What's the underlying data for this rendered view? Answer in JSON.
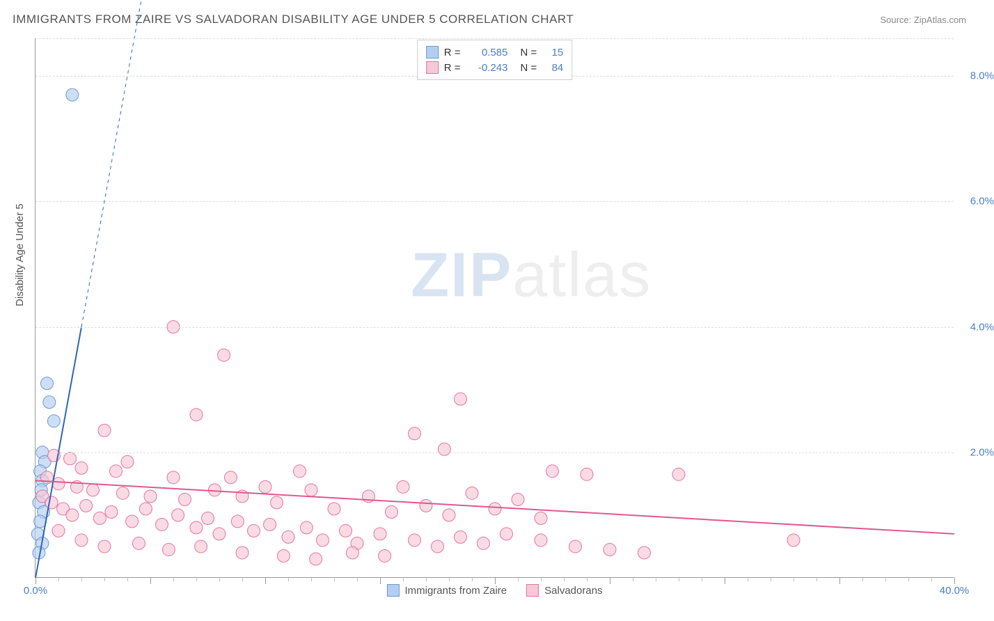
{
  "header": {
    "title": "IMMIGRANTS FROM ZAIRE VS SALVADORAN DISABILITY AGE UNDER 5 CORRELATION CHART",
    "source": "Source: ZipAtlas.com"
  },
  "watermark": {
    "part1": "ZIP",
    "part2": "atlas"
  },
  "chart": {
    "type": "scatter",
    "x_axis": {
      "min": 0.0,
      "max": 40.0,
      "label_min": "0.0%",
      "label_max": "40.0%",
      "major_step": 5.0,
      "minor_step": 1.0
    },
    "y_axis": {
      "min": 0.0,
      "max": 8.6,
      "ticks": [
        2.0,
        4.0,
        6.0,
        8.0
      ],
      "tick_labels": [
        "2.0%",
        "4.0%",
        "6.0%",
        "8.0%"
      ],
      "label": "Disability Age Under 5"
    },
    "grid_color": "#dddddd",
    "axis_color": "#999999",
    "background_color": "#ffffff",
    "tick_label_color": "#4a7fc4",
    "series": [
      {
        "name": "Immigrants from Zaire",
        "color_fill": "#b3cef0",
        "color_stroke": "#6a9ad4",
        "marker_radius": 9,
        "R": "0.585",
        "N": "15",
        "trend": {
          "x1": 0.0,
          "y1": 0.0,
          "x2": 2.0,
          "y2": 4.0,
          "dash_x2": 5.0,
          "dash_y2": 10.0,
          "color": "#2f66b8",
          "width": 2
        },
        "points": [
          {
            "x": 1.6,
            "y": 7.7
          },
          {
            "x": 0.5,
            "y": 3.1
          },
          {
            "x": 0.6,
            "y": 2.8
          },
          {
            "x": 0.8,
            "y": 2.5
          },
          {
            "x": 0.3,
            "y": 2.0
          },
          {
            "x": 0.4,
            "y": 1.85
          },
          {
            "x": 0.2,
            "y": 1.7
          },
          {
            "x": 0.3,
            "y": 1.55
          },
          {
            "x": 0.25,
            "y": 1.4
          },
          {
            "x": 0.15,
            "y": 1.2
          },
          {
            "x": 0.35,
            "y": 1.05
          },
          {
            "x": 0.2,
            "y": 0.9
          },
          {
            "x": 0.1,
            "y": 0.7
          },
          {
            "x": 0.3,
            "y": 0.55
          },
          {
            "x": 0.15,
            "y": 0.4
          }
        ]
      },
      {
        "name": "Salvadorans",
        "color_fill": "#f7c8d6",
        "color_stroke": "#e573a0",
        "marker_radius": 9,
        "R": "-0.243",
        "N": "84",
        "trend": {
          "x1": 0.0,
          "y1": 1.55,
          "x2": 40.0,
          "y2": 0.7,
          "color": "#e05790",
          "width": 2
        },
        "points": [
          {
            "x": 6.0,
            "y": 4.0
          },
          {
            "x": 8.2,
            "y": 3.55
          },
          {
            "x": 18.5,
            "y": 2.85
          },
          {
            "x": 7.0,
            "y": 2.6
          },
          {
            "x": 3.0,
            "y": 2.35
          },
          {
            "x": 16.5,
            "y": 2.3
          },
          {
            "x": 0.8,
            "y": 1.95
          },
          {
            "x": 1.5,
            "y": 1.9
          },
          {
            "x": 17.8,
            "y": 2.05
          },
          {
            "x": 22.5,
            "y": 1.7
          },
          {
            "x": 24.0,
            "y": 1.65
          },
          {
            "x": 28.0,
            "y": 1.65
          },
          {
            "x": 4.0,
            "y": 1.85
          },
          {
            "x": 2.0,
            "y": 1.75
          },
          {
            "x": 3.5,
            "y": 1.7
          },
          {
            "x": 6.0,
            "y": 1.6
          },
          {
            "x": 8.5,
            "y": 1.6
          },
          {
            "x": 10.0,
            "y": 1.45
          },
          {
            "x": 11.5,
            "y": 1.7
          },
          {
            "x": 0.5,
            "y": 1.6
          },
          {
            "x": 1.0,
            "y": 1.5
          },
          {
            "x": 1.8,
            "y": 1.45
          },
          {
            "x": 2.5,
            "y": 1.4
          },
          {
            "x": 3.8,
            "y": 1.35
          },
          {
            "x": 5.0,
            "y": 1.3
          },
          {
            "x": 6.5,
            "y": 1.25
          },
          {
            "x": 7.8,
            "y": 1.4
          },
          {
            "x": 9.0,
            "y": 1.3
          },
          {
            "x": 10.5,
            "y": 1.2
          },
          {
            "x": 12.0,
            "y": 1.4
          },
          {
            "x": 13.0,
            "y": 1.1
          },
          {
            "x": 14.5,
            "y": 1.3
          },
          {
            "x": 15.5,
            "y": 1.05
          },
          {
            "x": 16.0,
            "y": 1.45
          },
          {
            "x": 17.0,
            "y": 1.15
          },
          {
            "x": 18.0,
            "y": 1.0
          },
          {
            "x": 19.0,
            "y": 1.35
          },
          {
            "x": 20.0,
            "y": 1.1
          },
          {
            "x": 21.0,
            "y": 1.25
          },
          {
            "x": 22.0,
            "y": 0.95
          },
          {
            "x": 0.3,
            "y": 1.3
          },
          {
            "x": 0.7,
            "y": 1.2
          },
          {
            "x": 1.2,
            "y": 1.1
          },
          {
            "x": 1.6,
            "y": 1.0
          },
          {
            "x": 2.2,
            "y": 1.15
          },
          {
            "x": 2.8,
            "y": 0.95
          },
          {
            "x": 3.3,
            "y": 1.05
          },
          {
            "x": 4.2,
            "y": 0.9
          },
          {
            "x": 4.8,
            "y": 1.1
          },
          {
            "x": 5.5,
            "y": 0.85
          },
          {
            "x": 6.2,
            "y": 1.0
          },
          {
            "x": 7.0,
            "y": 0.8
          },
          {
            "x": 7.5,
            "y": 0.95
          },
          {
            "x": 8.0,
            "y": 0.7
          },
          {
            "x": 8.8,
            "y": 0.9
          },
          {
            "x": 9.5,
            "y": 0.75
          },
          {
            "x": 10.2,
            "y": 0.85
          },
          {
            "x": 11.0,
            "y": 0.65
          },
          {
            "x": 11.8,
            "y": 0.8
          },
          {
            "x": 12.5,
            "y": 0.6
          },
          {
            "x": 13.5,
            "y": 0.75
          },
          {
            "x": 14.0,
            "y": 0.55
          },
          {
            "x": 15.0,
            "y": 0.7
          },
          {
            "x": 16.5,
            "y": 0.6
          },
          {
            "x": 17.5,
            "y": 0.5
          },
          {
            "x": 18.5,
            "y": 0.65
          },
          {
            "x": 19.5,
            "y": 0.55
          },
          {
            "x": 20.5,
            "y": 0.7
          },
          {
            "x": 22.0,
            "y": 0.6
          },
          {
            "x": 23.5,
            "y": 0.5
          },
          {
            "x": 25.0,
            "y": 0.45
          },
          {
            "x": 26.5,
            "y": 0.4
          },
          {
            "x": 33.0,
            "y": 0.6
          },
          {
            "x": 1.0,
            "y": 0.75
          },
          {
            "x": 2.0,
            "y": 0.6
          },
          {
            "x": 3.0,
            "y": 0.5
          },
          {
            "x": 4.5,
            "y": 0.55
          },
          {
            "x": 5.8,
            "y": 0.45
          },
          {
            "x": 7.2,
            "y": 0.5
          },
          {
            "x": 9.0,
            "y": 0.4
          },
          {
            "x": 10.8,
            "y": 0.35
          },
          {
            "x": 12.2,
            "y": 0.3
          },
          {
            "x": 13.8,
            "y": 0.4
          },
          {
            "x": 15.2,
            "y": 0.35
          }
        ]
      }
    ]
  },
  "legend_top": {
    "r_label": "R  =",
    "n_label": "N  ="
  },
  "legend_bottom": [
    {
      "label": "Immigrants from Zaire",
      "fill": "#b3cef0",
      "stroke": "#6a9ad4"
    },
    {
      "label": "Salvadorans",
      "fill": "#f7c8d6",
      "stroke": "#e573a0"
    }
  ]
}
